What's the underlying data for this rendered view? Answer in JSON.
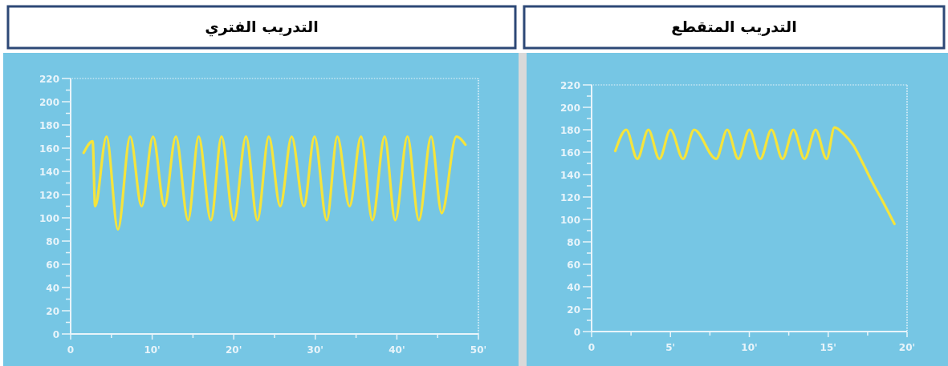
{
  "chart_data": [
    {
      "type": "line",
      "title": "التدريب الفتري",
      "x": [
        1.6,
        2.7,
        3.0,
        4.4,
        5.8,
        7.3,
        8.7,
        10.1,
        11.5,
        12.9,
        14.4,
        15.7,
        17.2,
        18.5,
        20.0,
        21.5,
        22.9,
        24.3,
        25.7,
        27.1,
        28.6,
        29.9,
        31.4,
        32.7,
        34.2,
        35.6,
        37.0,
        38.5,
        39.8,
        41.3,
        42.7,
        44.2,
        45.5,
        47.3,
        48.4
      ],
      "series": [
        {
          "color": "#f5e43c",
          "values": [
            156,
            166,
            110,
            170,
            90,
            170,
            110,
            170,
            110,
            170,
            98,
            170,
            98,
            170,
            98,
            170,
            98,
            170,
            110,
            170,
            110,
            170,
            98,
            170,
            110,
            170,
            98,
            170,
            98,
            170,
            98,
            170,
            104,
            170,
            163
          ]
        }
      ],
      "xlim": [
        0,
        50
      ],
      "xticks": [
        0,
        {
          "value": 5,
          "label": null
        },
        {
          "value": 10,
          "label": "10'"
        },
        {
          "value": 15,
          "label": null
        },
        {
          "value": 20,
          "label": "20'"
        },
        {
          "value": 25,
          "label": null
        },
        {
          "value": 30,
          "label": "30'"
        },
        {
          "value": 35,
          "label": null
        },
        {
          "value": 40,
          "label": "40'"
        },
        {
          "value": 45,
          "label": null
        },
        {
          "value": 50,
          "label": "50'"
        }
      ],
      "ylim": [
        0,
        220
      ],
      "yticks": [
        0,
        {
          "value": 10,
          "label": null
        },
        20,
        {
          "value": 30,
          "label": null
        },
        40,
        {
          "value": 50,
          "label": null
        },
        60,
        {
          "value": 70,
          "label": null
        },
        80,
        {
          "value": 90,
          "label": null
        },
        100,
        {
          "value": 110,
          "label": null
        },
        120,
        {
          "value": 130,
          "label": null
        },
        140,
        {
          "value": 150,
          "label": null
        },
        160,
        {
          "value": 170,
          "label": null
        },
        180,
        {
          "value": 190,
          "label": null
        },
        200,
        {
          "value": 210,
          "label": null
        },
        220
      ],
      "grid": false,
      "line_style": "solid",
      "marker": "none"
    },
    {
      "type": "line",
      "title": "التدريب المتقطع",
      "x": [
        1.5,
        2.2,
        2.9,
        3.6,
        4.3,
        5.0,
        5.8,
        6.5,
        7.9,
        8.6,
        9.3,
        10.0,
        10.7,
        11.4,
        12.1,
        12.8,
        13.5,
        14.2,
        14.9,
        15.4,
        16.0,
        16.6,
        17.2,
        17.8,
        18.5,
        19.2
      ],
      "series": [
        {
          "color": "#f5e43c",
          "values": [
            161,
            180,
            154,
            180,
            154,
            180,
            154,
            180,
            154,
            180,
            154,
            180,
            154,
            180,
            154,
            180,
            154,
            180,
            154,
            182,
            176,
            166,
            150,
            133,
            115,
            96
          ]
        }
      ],
      "xlim": [
        0,
        20
      ],
      "xticks": [
        0,
        {
          "value": 2.5,
          "label": null
        },
        {
          "value": 5,
          "label": "5'"
        },
        {
          "value": 7.5,
          "label": null
        },
        {
          "value": 10,
          "label": "10'"
        },
        {
          "value": 12.5,
          "label": null
        },
        {
          "value": 15,
          "label": "15'"
        },
        {
          "value": 17.5,
          "label": null
        },
        {
          "value": 20,
          "label": "20'"
        }
      ],
      "ylim": [
        0,
        220
      ],
      "yticks": [
        0,
        {
          "value": 10,
          "label": null
        },
        20,
        {
          "value": 30,
          "label": null
        },
        40,
        {
          "value": 50,
          "label": null
        },
        60,
        {
          "value": 70,
          "label": null
        },
        80,
        {
          "value": 90,
          "label": null
        },
        100,
        {
          "value": 110,
          "label": null
        },
        120,
        {
          "value": 130,
          "label": null
        },
        140,
        {
          "value": 150,
          "label": null
        },
        160,
        {
          "value": 170,
          "label": null
        },
        180,
        {
          "value": 190,
          "label": null
        },
        200,
        {
          "value": 210,
          "label": null
        },
        220
      ],
      "grid": false,
      "line_style": "solid",
      "marker": "none"
    }
  ]
}
